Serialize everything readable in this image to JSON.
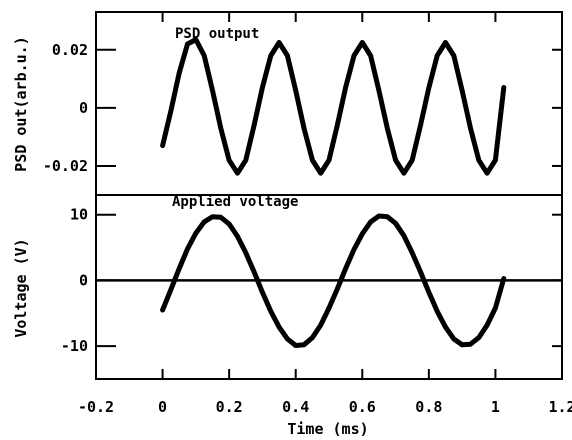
{
  "chart_data": [
    {
      "type": "line",
      "panel": "top",
      "ylabel": "PSD out(arb.u.)",
      "annotation": "PSD output",
      "ylim": [
        -0.03,
        0.033
      ],
      "yticks": [
        0.02,
        0,
        -0.02
      ],
      "ytick_labels": [
        "0.02",
        "0",
        "-0.02"
      ],
      "series": [
        {
          "x": [
            0.0,
            0.025,
            0.05,
            0.075,
            0.1,
            0.125,
            0.15,
            0.175,
            0.2,
            0.225,
            0.25,
            0.275,
            0.3,
            0.325,
            0.35,
            0.375,
            0.4,
            0.425,
            0.45,
            0.475,
            0.5,
            0.525,
            0.55,
            0.575,
            0.6,
            0.625,
            0.65,
            0.675,
            0.7,
            0.725,
            0.75,
            0.775,
            0.8,
            0.825,
            0.85,
            0.875,
            0.9,
            0.925,
            0.95,
            0.975,
            1.0,
            1.025
          ],
          "y": [
            -0.013,
            -0.001,
            0.012,
            0.022,
            0.0235,
            0.018,
            0.006,
            -0.007,
            -0.018,
            -0.0225,
            -0.018,
            -0.006,
            0.007,
            0.018,
            0.0225,
            0.018,
            0.006,
            -0.007,
            -0.018,
            -0.0225,
            -0.018,
            -0.006,
            0.007,
            0.018,
            0.0225,
            0.018,
            0.006,
            -0.007,
            -0.018,
            -0.0225,
            -0.018,
            -0.006,
            0.007,
            0.018,
            0.0225,
            0.018,
            0.006,
            -0.007,
            -0.018,
            -0.0225,
            -0.018,
            0.007
          ]
        }
      ]
    },
    {
      "type": "line",
      "panel": "bottom",
      "ylabel": "Voltage (V)",
      "xlabel": "Time (ms)",
      "annotation": "Applied voltage",
      "ylim": [
        -15,
        13
      ],
      "yticks": [
        10,
        0,
        -10
      ],
      "ytick_labels": [
        "10",
        "0",
        "-10"
      ],
      "xlim": [
        -0.2,
        1.2
      ],
      "xticks": [
        -0.2,
        0,
        0.2,
        0.4,
        0.6,
        0.8,
        1,
        1.2
      ],
      "xtick_labels": [
        "-0.2",
        "0",
        "0.2",
        "0.4",
        "0.6",
        "0.8",
        "1",
        "1.2"
      ],
      "zero_line": true,
      "series": [
        {
          "x": [
            0.0,
            0.025,
            0.05,
            0.075,
            0.1,
            0.125,
            0.15,
            0.175,
            0.2,
            0.225,
            0.25,
            0.275,
            0.3,
            0.325,
            0.35,
            0.375,
            0.4,
            0.425,
            0.45,
            0.475,
            0.5,
            0.525,
            0.55,
            0.575,
            0.6,
            0.625,
            0.65,
            0.675,
            0.7,
            0.725,
            0.75,
            0.775,
            0.8,
            0.825,
            0.85,
            0.875,
            0.9,
            0.925,
            0.95,
            0.975,
            1.0,
            1.025
          ],
          "y": [
            -4.5,
            -1.4,
            1.8,
            4.8,
            7.2,
            8.9,
            9.7,
            9.6,
            8.6,
            6.7,
            4.2,
            1.3,
            -1.8,
            -4.7,
            -7.1,
            -8.9,
            -9.9,
            -9.8,
            -8.7,
            -6.8,
            -4.2,
            -1.3,
            1.8,
            4.7,
            7.1,
            8.9,
            9.8,
            9.7,
            8.7,
            6.8,
            4.2,
            1.3,
            -1.8,
            -4.7,
            -7.1,
            -8.9,
            -9.8,
            -9.7,
            -8.7,
            -6.8,
            -4.2,
            0.3
          ]
        }
      ]
    }
  ]
}
